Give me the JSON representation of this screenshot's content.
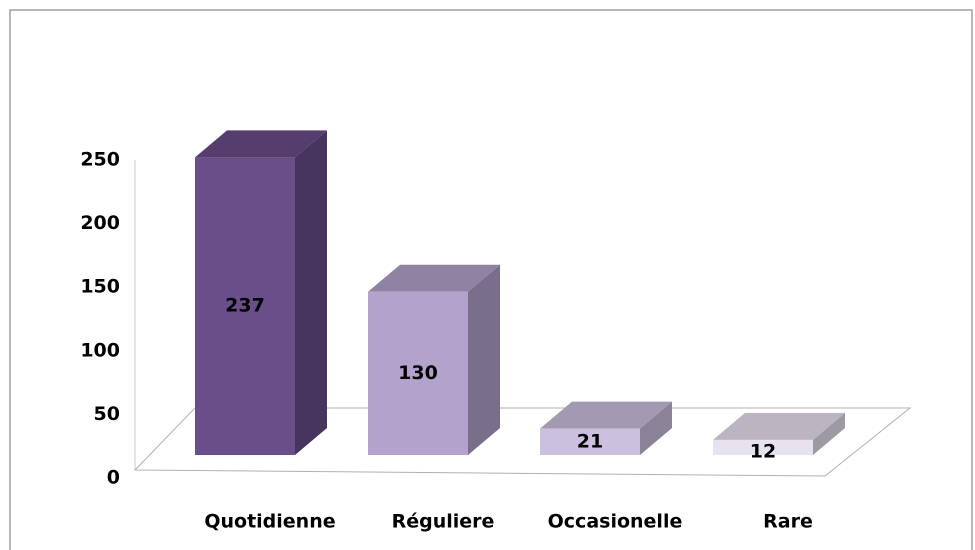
{
  "chart_data": {
    "type": "bar3d",
    "categories": [
      "Quotidienne",
      "Réguliere",
      "Occasionelle",
      "Rare"
    ],
    "values": [
      237,
      130,
      21,
      12
    ],
    "colors": [
      "#6a4e8a",
      "#b3a3cc",
      "#cbc0de",
      "#e8e2f0"
    ],
    "ylim": [
      0,
      250
    ],
    "yticks": [
      0,
      50,
      100,
      150,
      200,
      250
    ],
    "grid": false
  }
}
